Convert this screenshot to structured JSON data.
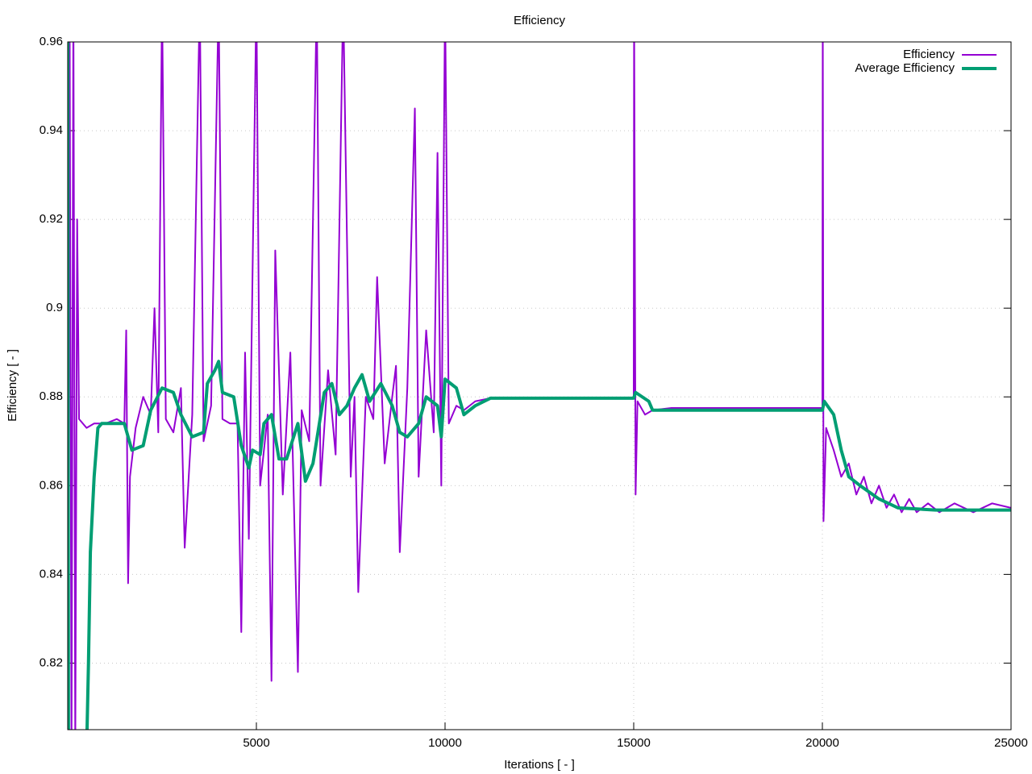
{
  "chart_data": {
    "type": "line",
    "title": "Efficiency",
    "xlabel": "Iterations [ - ]",
    "ylabel": "Efficiency [ - ]",
    "xlim": [
      0,
      25000
    ],
    "xticks": [
      5000,
      10000,
      15000,
      20000,
      25000
    ],
    "ylim": [
      0.805,
      0.96
    ],
    "yticks": [
      0.82,
      0.84,
      0.86,
      0.88,
      0.9,
      0.92,
      0.94,
      0.96
    ],
    "grid": true,
    "legend": "top-right",
    "series": [
      {
        "name": "Efficiency",
        "color": "#9400d3",
        "width": 2,
        "x": [
          0,
          50,
          100,
          150,
          200,
          250,
          300,
          400,
          500,
          700,
          1000,
          1300,
          1500,
          1550,
          1600,
          1650,
          1800,
          2000,
          2200,
          2300,
          2400,
          2500,
          2600,
          2800,
          3000,
          3100,
          3300,
          3500,
          3600,
          3800,
          4000,
          4100,
          4300,
          4500,
          4600,
          4700,
          4800,
          5000,
          5100,
          5300,
          5400,
          5500,
          5700,
          5900,
          6100,
          6200,
          6400,
          6600,
          6700,
          6900,
          7100,
          7300,
          7500,
          7600,
          7700,
          7900,
          8100,
          8200,
          8400,
          8600,
          8700,
          8800,
          9000,
          9200,
          9300,
          9500,
          9700,
          9800,
          9900,
          10000,
          10100,
          10300,
          10500,
          10800,
          11200,
          15000,
          15010,
          15050,
          15100,
          15300,
          15500,
          16000,
          20000,
          20010,
          20030,
          20100,
          20300,
          20500,
          20700,
          20900,
          21100,
          21300,
          21500,
          21700,
          21900,
          22100,
          22300,
          22500,
          22800,
          23100,
          23500,
          24000,
          24500,
          25000
        ],
        "values": [
          0.8,
          0.97,
          0.8,
          0.97,
          0.8,
          0.92,
          0.875,
          0.874,
          0.873,
          0.874,
          0.874,
          0.875,
          0.874,
          0.895,
          0.838,
          0.862,
          0.873,
          0.88,
          0.876,
          0.9,
          0.872,
          0.97,
          0.875,
          0.872,
          0.882,
          0.846,
          0.876,
          0.97,
          0.87,
          0.878,
          0.97,
          0.875,
          0.874,
          0.874,
          0.827,
          0.89,
          0.848,
          0.97,
          0.86,
          0.876,
          0.816,
          0.913,
          0.858,
          0.89,
          0.818,
          0.877,
          0.87,
          0.97,
          0.86,
          0.886,
          0.867,
          0.97,
          0.862,
          0.88,
          0.836,
          0.88,
          0.875,
          0.907,
          0.865,
          0.88,
          0.887,
          0.845,
          0.882,
          0.945,
          0.862,
          0.895,
          0.872,
          0.935,
          0.86,
          0.97,
          0.874,
          0.878,
          0.877,
          0.879,
          0.8797,
          0.8797,
          0.97,
          0.858,
          0.879,
          0.876,
          0.877,
          0.8775,
          0.8775,
          0.97,
          0.852,
          0.873,
          0.868,
          0.862,
          0.865,
          0.858,
          0.862,
          0.856,
          0.86,
          0.855,
          0.858,
          0.854,
          0.857,
          0.854,
          0.856,
          0.854,
          0.856,
          0.854,
          0.856,
          0.855
        ]
      },
      {
        "name": "Average Efficiency",
        "color": "#009e73",
        "width": 4,
        "x": [
          0,
          20,
          500,
          550,
          600,
          700,
          800,
          900,
          1500,
          1700,
          2000,
          2200,
          2500,
          2800,
          3000,
          3300,
          3600,
          3700,
          3900,
          4000,
          4100,
          4400,
          4600,
          4800,
          4900,
          5100,
          5200,
          5400,
          5600,
          5800,
          6100,
          6300,
          6500,
          6800,
          7000,
          7200,
          7400,
          7600,
          7800,
          8000,
          8300,
          8600,
          8800,
          9000,
          9300,
          9500,
          9800,
          9900,
          10000,
          10300,
          10500,
          10800,
          11200,
          15000,
          15050,
          15400,
          15500,
          20000,
          20050,
          20300,
          20500,
          20700,
          21000,
          21500,
          22000,
          23000,
          25000
        ],
        "values": [
          0.97,
          0.8,
          0.8,
          0.82,
          0.845,
          0.862,
          0.873,
          0.874,
          0.874,
          0.868,
          0.869,
          0.877,
          0.882,
          0.881,
          0.876,
          0.871,
          0.872,
          0.883,
          0.886,
          0.888,
          0.881,
          0.88,
          0.869,
          0.864,
          0.868,
          0.867,
          0.874,
          0.876,
          0.866,
          0.866,
          0.874,
          0.861,
          0.865,
          0.881,
          0.883,
          0.876,
          0.878,
          0.882,
          0.885,
          0.879,
          0.883,
          0.878,
          0.872,
          0.871,
          0.874,
          0.88,
          0.878,
          0.871,
          0.884,
          0.882,
          0.876,
          0.878,
          0.8797,
          0.8797,
          0.881,
          0.879,
          0.877,
          0.877,
          0.879,
          0.876,
          0.868,
          0.862,
          0.86,
          0.857,
          0.855,
          0.8545,
          0.8545
        ]
      }
    ]
  }
}
